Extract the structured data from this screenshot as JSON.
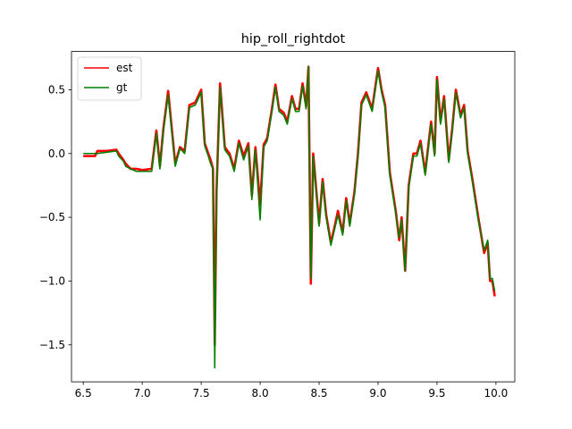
{
  "chart_data": {
    "type": "line",
    "title": "hip_roll_rightdot",
    "xlabel": "",
    "ylabel": "",
    "xlim": [
      6.4,
      10.16
    ],
    "ylim": [
      -1.79,
      0.8
    ],
    "xticks": [
      6.5,
      7.0,
      7.5,
      8.0,
      8.5,
      9.0,
      9.5,
      10.0
    ],
    "xtick_labels": [
      "6.5",
      "7.0",
      "7.5",
      "8.0",
      "8.5",
      "9.0",
      "9.5",
      "10.0"
    ],
    "yticks": [
      0.5,
      0.0,
      -0.5,
      -1.0,
      -1.5
    ],
    "ytick_labels": [
      "0.5",
      "0.0",
      "−0.5",
      "−1.0",
      "−1.5"
    ],
    "grid": false,
    "legend_position": "top-left",
    "series": [
      {
        "name": "est",
        "color": "#ff0000",
        "x": [
          6.5,
          6.6,
          6.62,
          6.7,
          6.78,
          6.8,
          6.84,
          6.86,
          6.9,
          6.95,
          7.0,
          7.08,
          7.12,
          7.15,
          7.18,
          7.22,
          7.25,
          7.28,
          7.32,
          7.36,
          7.4,
          7.45,
          7.5,
          7.53,
          7.56,
          7.58,
          7.6,
          7.615,
          7.63,
          7.66,
          7.68,
          7.7,
          7.74,
          7.78,
          7.82,
          7.86,
          7.9,
          7.93,
          7.96,
          8.0,
          8.03,
          8.06,
          8.1,
          8.13,
          8.16,
          8.2,
          8.23,
          8.27,
          8.3,
          8.33,
          8.36,
          8.39,
          8.41,
          8.43,
          8.45,
          8.5,
          8.53,
          8.56,
          8.6,
          8.63,
          8.66,
          8.7,
          8.73,
          8.76,
          8.8,
          8.83,
          8.86,
          8.9,
          8.95,
          9.0,
          9.03,
          9.06,
          9.1,
          9.15,
          9.18,
          9.2,
          9.23,
          9.26,
          9.3,
          9.33,
          9.36,
          9.4,
          9.45,
          9.48,
          9.5,
          9.53,
          9.56,
          9.6,
          9.63,
          9.66,
          9.7,
          9.73,
          9.76,
          9.8,
          9.85,
          9.9,
          9.93,
          9.95,
          9.97,
          9.99
        ],
        "y": [
          -0.02,
          -0.02,
          0.02,
          0.02,
          0.03,
          0.0,
          -0.05,
          -0.08,
          -0.12,
          -0.12,
          -0.13,
          -0.12,
          0.18,
          -0.1,
          0.2,
          0.49,
          0.2,
          -0.08,
          0.05,
          0.02,
          0.38,
          0.4,
          0.5,
          0.08,
          0.0,
          -0.05,
          -0.12,
          -1.5,
          -0.3,
          0.55,
          0.3,
          0.05,
          0.0,
          -0.12,
          0.1,
          -0.02,
          0.08,
          -0.33,
          0.05,
          -0.4,
          0.07,
          0.12,
          0.35,
          0.54,
          0.35,
          0.32,
          0.25,
          0.45,
          0.35,
          0.35,
          0.55,
          0.37,
          0.68,
          -1.02,
          0.0,
          -0.55,
          -0.2,
          -0.48,
          -0.7,
          -0.58,
          -0.45,
          -0.62,
          -0.35,
          -0.55,
          -0.3,
          0.0,
          0.4,
          0.48,
          0.35,
          0.67,
          0.5,
          0.38,
          -0.15,
          -0.45,
          -0.68,
          -0.5,
          -0.92,
          -0.25,
          0.0,
          0.0,
          0.1,
          -0.15,
          0.25,
          0.0,
          0.6,
          0.25,
          0.45,
          -0.05,
          0.2,
          0.5,
          0.3,
          0.38,
          0.02,
          -0.2,
          -0.5,
          -0.78,
          -0.7,
          -1.0,
          -1.0,
          -1.12
        ]
      },
      {
        "name": "gt",
        "color": "#008000",
        "x": [
          6.5,
          6.6,
          6.62,
          6.7,
          6.78,
          6.8,
          6.84,
          6.86,
          6.9,
          6.95,
          7.0,
          7.08,
          7.12,
          7.15,
          7.18,
          7.22,
          7.25,
          7.28,
          7.32,
          7.36,
          7.4,
          7.45,
          7.5,
          7.53,
          7.56,
          7.58,
          7.6,
          7.615,
          7.63,
          7.66,
          7.68,
          7.7,
          7.74,
          7.78,
          7.82,
          7.86,
          7.9,
          7.93,
          7.96,
          8.0,
          8.03,
          8.06,
          8.1,
          8.13,
          8.16,
          8.2,
          8.23,
          8.27,
          8.3,
          8.33,
          8.36,
          8.39,
          8.41,
          8.43,
          8.45,
          8.5,
          8.53,
          8.56,
          8.6,
          8.63,
          8.66,
          8.7,
          8.73,
          8.76,
          8.8,
          8.83,
          8.86,
          8.9,
          8.95,
          9.0,
          9.03,
          9.06,
          9.1,
          9.15,
          9.18,
          9.2,
          9.23,
          9.26,
          9.3,
          9.33,
          9.36,
          9.4,
          9.45,
          9.48,
          9.5,
          9.53,
          9.56,
          9.6,
          9.63,
          9.66,
          9.7,
          9.73,
          9.76,
          9.8,
          9.85,
          9.9,
          9.93,
          9.95,
          9.97,
          9.99
        ],
        "y": [
          0.0,
          0.0,
          0.0,
          0.01,
          0.02,
          -0.02,
          -0.06,
          -0.1,
          -0.12,
          -0.14,
          -0.14,
          -0.14,
          0.16,
          -0.12,
          0.18,
          0.46,
          0.18,
          -0.1,
          0.04,
          0.0,
          0.36,
          0.38,
          0.48,
          0.06,
          -0.02,
          -0.08,
          -0.12,
          -1.68,
          -0.32,
          0.52,
          0.28,
          0.03,
          -0.02,
          -0.14,
          0.08,
          -0.05,
          0.06,
          -0.36,
          0.03,
          -0.52,
          0.05,
          0.1,
          0.33,
          0.52,
          0.33,
          0.3,
          0.23,
          0.43,
          0.33,
          0.33,
          0.53,
          0.35,
          0.68,
          -0.98,
          -0.02,
          -0.57,
          -0.22,
          -0.5,
          -0.72,
          -0.6,
          -0.48,
          -0.64,
          -0.37,
          -0.57,
          -0.32,
          -0.02,
          0.38,
          0.46,
          0.33,
          0.65,
          0.48,
          0.36,
          -0.17,
          -0.47,
          -0.66,
          -0.52,
          -0.92,
          -0.27,
          -0.02,
          -0.02,
          0.08,
          -0.17,
          0.23,
          -0.02,
          0.58,
          0.23,
          0.43,
          -0.07,
          0.18,
          0.48,
          0.28,
          0.36,
          0.0,
          -0.22,
          -0.52,
          -0.76,
          -0.68,
          -0.98,
          -0.98,
          -1.08
        ]
      }
    ]
  }
}
